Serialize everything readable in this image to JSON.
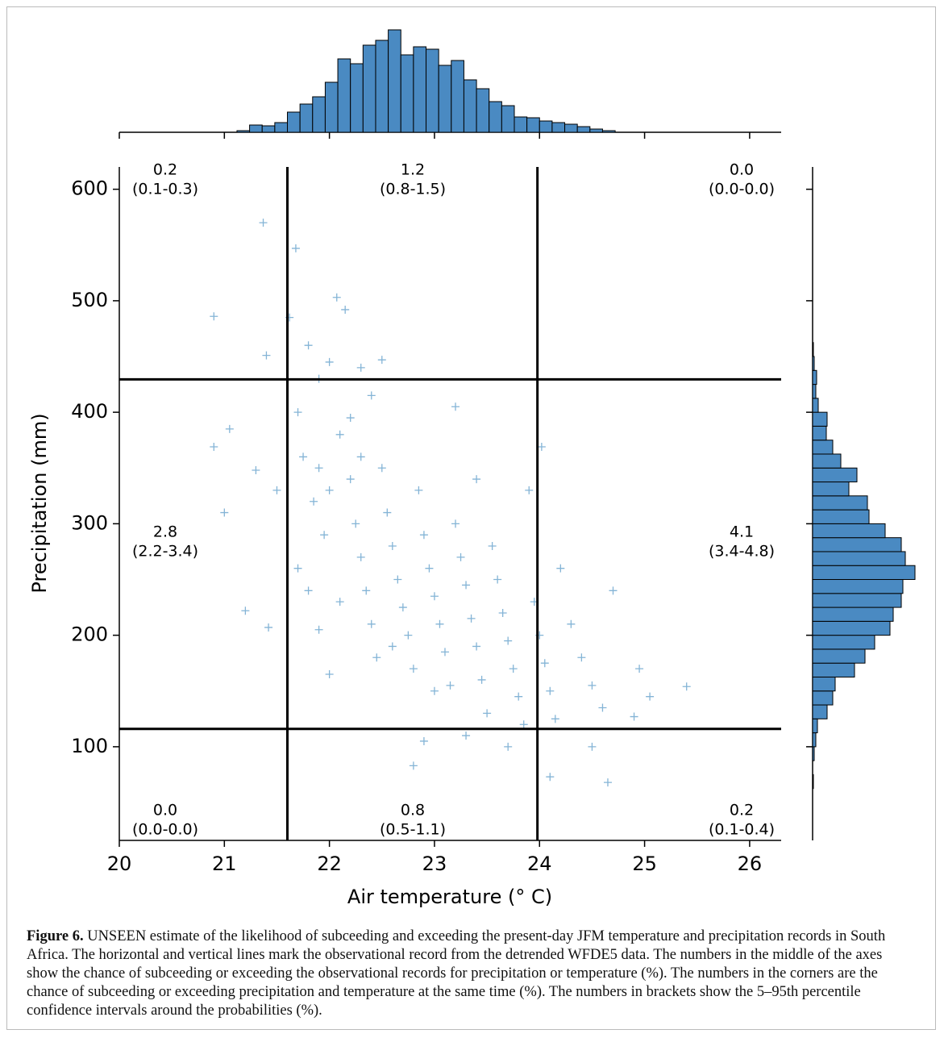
{
  "chart_data": {
    "type": "scatter",
    "xlabel": "Air temperature (° C)",
    "ylabel": "Precipitation (mm)",
    "xlim": [
      20,
      26.3
    ],
    "ylim": [
      16,
      620
    ],
    "xticks": [
      20,
      21,
      22,
      23,
      24,
      25,
      26
    ],
    "yticks": [
      100,
      200,
      300,
      400,
      500,
      600
    ],
    "color": "#1f77b4",
    "marker": "+",
    "x": [
      21.37,
      21.68,
      20.9,
      22.07,
      22.15,
      21.62,
      20.9,
      21.05,
      21.4,
      24.02,
      25.4,
      25.05,
      24.65,
      24.1,
      22.8,
      24.95,
      24.9,
      24.5,
      21.42,
      21.0,
      21.2,
      21.3,
      21.5,
      21.7,
      21.8,
      21.9,
      22.0,
      22.3,
      22.5,
      21.75,
      21.85,
      21.95,
      21.7,
      21.8,
      21.9,
      22.0,
      22.1,
      22.2,
      22.25,
      22.3,
      22.35,
      22.4,
      22.45,
      22.5,
      22.55,
      22.6,
      22.65,
      22.7,
      22.75,
      22.8,
      22.85,
      22.9,
      22.95,
      23.0,
      23.05,
      23.1,
      23.15,
      23.2,
      23.25,
      23.3,
      23.35,
      23.4,
      23.45,
      23.5,
      23.55,
      23.6,
      23.65,
      23.7,
      23.75,
      23.8,
      23.85,
      23.9,
      23.95,
      24.0,
      24.05,
      24.1,
      24.15,
      24.2,
      24.3,
      24.4,
      24.5,
      24.6,
      24.7,
      22.9,
      23.3,
      23.7,
      22.2,
      22.4,
      23.2,
      22.1,
      22.0,
      21.9,
      22.6,
      23.0,
      23.4,
      22.3
    ],
    "values": [
      570,
      547,
      486,
      503,
      492,
      485,
      369,
      385,
      451,
      369,
      154,
      145,
      68,
      73,
      83,
      170,
      127,
      100,
      207,
      310,
      222,
      348,
      330,
      400,
      460,
      430,
      445,
      440,
      447,
      360,
      320,
      290,
      260,
      240,
      205,
      165,
      380,
      340,
      300,
      270,
      240,
      210,
      180,
      350,
      310,
      280,
      250,
      225,
      200,
      170,
      330,
      290,
      260,
      235,
      210,
      185,
      155,
      300,
      270,
      245,
      215,
      190,
      160,
      130,
      280,
      250,
      220,
      195,
      170,
      145,
      120,
      330,
      230,
      200,
      175,
      150,
      125,
      260,
      210,
      180,
      155,
      135,
      240,
      105,
      110,
      100,
      395,
      415,
      405,
      230,
      330,
      350,
      190,
      150,
      340,
      360
    ],
    "record_lines": {
      "x": [
        21.6,
        23.98
      ],
      "y": [
        116,
        429.5
      ]
    },
    "annotations": [
      {
        "value": "0.2",
        "interval": "(0.1-0.3)"
      },
      {
        "value": "1.2",
        "interval": "(0.8-1.5)"
      },
      {
        "value": "0.0",
        "interval": "(0.0-0.0)"
      },
      {
        "value": "2.8",
        "interval": "(2.2-3.4)"
      },
      {
        "value": "4.1",
        "interval": "(3.4-4.8)"
      },
      {
        "value": "0.0",
        "interval": "(0.0-0.0)"
      },
      {
        "value": "0.8",
        "interval": "(0.5-1.1)"
      },
      {
        "value": "0.2",
        "interval": "(0.1-0.4)"
      }
    ],
    "x_histogram": {
      "type": "histogram",
      "color": "#4a8ac2",
      "bins": [
        21.12,
        21.24,
        21.36,
        21.48,
        21.6,
        21.72,
        21.84,
        21.96,
        22.08,
        22.2,
        22.32,
        22.44,
        22.56,
        22.68,
        22.8,
        22.92,
        23.04,
        23.16,
        23.28,
        23.4,
        23.52,
        23.64,
        23.76,
        23.88,
        24.0,
        24.12,
        24.24,
        24.36,
        24.48,
        24.6,
        24.72
      ],
      "counts": [
        2,
        9,
        8,
        12,
        25,
        35,
        44,
        62,
        91,
        85,
        108,
        114,
        127,
        96,
        106,
        103,
        83,
        89,
        65,
        54,
        38,
        33,
        19,
        18,
        14,
        12,
        10,
        7,
        4,
        2
      ]
    },
    "y_histogram": {
      "type": "histogram",
      "color": "#4a8ac2",
      "bins": [
        62.5,
        75,
        87.5,
        100,
        112.5,
        125,
        137.5,
        150,
        162.5,
        175,
        187.5,
        200,
        212.5,
        225,
        237.5,
        250,
        262.5,
        275,
        287.5,
        300,
        312.5,
        325,
        337.5,
        350,
        362.5,
        375,
        387.5,
        400,
        412.5,
        425,
        437.5,
        450,
        462.5
      ],
      "counts": [
        1,
        0,
        2,
        4,
        6,
        18,
        25,
        28,
        52,
        65,
        77,
        96,
        100,
        110,
        112,
        127,
        115,
        110,
        90,
        70,
        68,
        45,
        55,
        35,
        25,
        17,
        18,
        7,
        4,
        5,
        2,
        1
      ]
    }
  },
  "caption": {
    "label": "Figure 6.",
    "text": "UNSEEN estimate of the likelihood of subceeding and exceeding the present-day JFM temperature and precipitation records in South Africa. The horizontal and vertical lines mark the observational record from the detrended WFDE5 data. The numbers in the middle of the axes show the chance of subceeding or exceeding the observational records for precipitation or temperature (%). The numbers in the corners are the chance of subceeding or exceeding precipitation and temperature at the same time (%). The numbers in brackets show the 5–95th percentile confidence intervals around the probabilities (%)."
  }
}
